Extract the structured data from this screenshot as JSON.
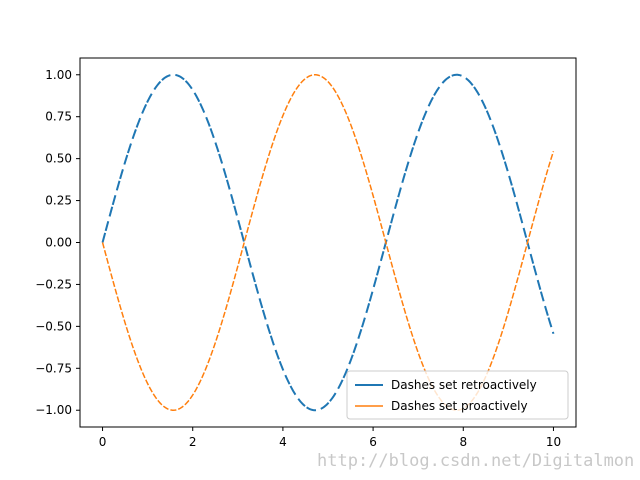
{
  "chart_data": {
    "type": "line",
    "title": "",
    "xlabel": "",
    "ylabel": "",
    "xlim": [
      -0.5,
      10.5
    ],
    "ylim": [
      -1.1,
      1.1
    ],
    "xticks": [
      0,
      2,
      4,
      6,
      8,
      10
    ],
    "xtick_labels": [
      "0",
      "2",
      "4",
      "6",
      "8",
      "10"
    ],
    "yticks": [
      -1.0,
      -0.75,
      -0.5,
      -0.25,
      0.0,
      0.25,
      0.5,
      0.75,
      1.0
    ],
    "ytick_labels": [
      "−1.00",
      "−0.75",
      "−0.50",
      "−0.25",
      "0.00",
      "0.25",
      "0.50",
      "0.75",
      "1.00"
    ],
    "grid": false,
    "legend_position": "lower-right",
    "x": [
      0,
      0.25,
      0.5,
      0.75,
      1.0,
      1.25,
      1.5,
      1.75,
      2.0,
      2.25,
      2.5,
      2.75,
      3.0,
      3.25,
      3.5,
      3.75,
      4.0,
      4.25,
      4.5,
      4.75,
      5.0,
      5.25,
      5.5,
      5.75,
      6.0,
      6.25,
      6.5,
      6.75,
      7.0,
      7.25,
      7.5,
      7.75,
      8.0,
      8.25,
      8.5,
      8.75,
      9.0,
      9.25,
      9.5,
      9.75,
      10.0
    ],
    "series": [
      {
        "name": "Dashes set retroactively",
        "function": "sin",
        "color": "#1f77b4",
        "linewidth": 2,
        "dash_pattern": [
          10,
          2,
          10,
          5
        ],
        "values": [
          0.0,
          0.247,
          0.479,
          0.682,
          0.841,
          0.949,
          0.997,
          0.984,
          0.909,
          0.778,
          0.598,
          0.382,
          0.141,
          -0.108,
          -0.351,
          -0.572,
          -0.757,
          -0.895,
          -0.978,
          -0.999,
          -0.959,
          -0.859,
          -0.706,
          -0.508,
          -0.279,
          -0.033,
          0.215,
          0.451,
          0.657,
          0.823,
          0.938,
          0.994,
          0.989,
          0.923,
          0.798,
          0.625,
          0.412,
          0.174,
          -0.075,
          -0.32,
          -0.544
        ]
      },
      {
        "name": "Dashes set proactively",
        "function": "-sin",
        "color": "#ff7f0e",
        "linewidth": 1.5,
        "dash_pattern": [
          6,
          2
        ],
        "values": [
          0.0,
          -0.247,
          -0.479,
          -0.682,
          -0.841,
          -0.949,
          -0.997,
          -0.984,
          -0.909,
          -0.778,
          -0.598,
          -0.382,
          -0.141,
          0.108,
          0.351,
          0.572,
          0.757,
          0.895,
          0.978,
          0.999,
          0.959,
          0.859,
          0.706,
          0.508,
          0.279,
          0.033,
          -0.215,
          -0.451,
          -0.657,
          -0.823,
          -0.938,
          -0.994,
          -0.989,
          -0.923,
          -0.798,
          -0.625,
          -0.412,
          -0.174,
          0.075,
          0.32,
          0.544
        ]
      }
    ]
  },
  "watermark": "http://blog.csdn.net/Digitalmon"
}
